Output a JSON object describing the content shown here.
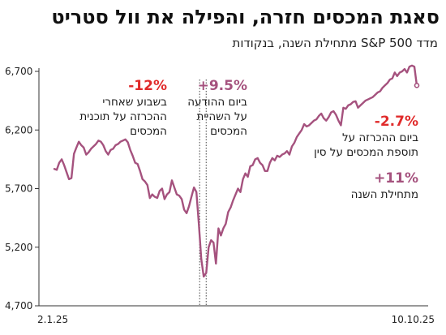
{
  "header": {
    "title": "סאגת המכסים חזרה, והפילה את וול סטריט",
    "subtitle": "מדד S&P 500 מתחילת השנה, בנקודות"
  },
  "colors": {
    "line": "#a5527e",
    "negative": "#e02b2b",
    "positive": "#a5527e",
    "axis": "#333333"
  },
  "annotations": [
    {
      "id": "week-after",
      "pct": "-12%",
      "tone": "negative",
      "lines": [
        "בשבוע שאחרי",
        "ההכרזה על תוכנית",
        "המכסים"
      ]
    },
    {
      "id": "pause-day",
      "pct": "+9.5%",
      "tone": "positive",
      "lines": [
        "ביום ההודעה",
        "על השהיית",
        "המכסים"
      ]
    },
    {
      "id": "china-day",
      "pct": "-2.7%",
      "tone": "negative",
      "lines": [
        "ביום ההכרזה על",
        "תוספת המכסים על סין"
      ]
    },
    {
      "id": "ytd",
      "pct": "+11%",
      "tone": "positive",
      "lines": [
        "מתחילת השנה"
      ]
    }
  ],
  "chart_data": {
    "type": "line",
    "title": "סאגת המכסים חזרה, והפילה את וול סטריט",
    "subtitle": "מדד S&P 500 מתחילת השנה, בנקודות",
    "x_tick_labels": [
      "2.1.25",
      "10.10.25"
    ],
    "y_ticks": [
      4700,
      5200,
      5700,
      6200,
      6700
    ],
    "y_tick_labels": [
      "4,700",
      "5,200",
      "5,700",
      "6,200",
      "6,700"
    ],
    "ylim": [
      4700,
      6700
    ],
    "grid": false,
    "legend": "none",
    "series": [
      {
        "values": [
          5868,
          5860,
          5920,
          5950,
          5900,
          5840,
          5780,
          5790,
          5996,
          6050,
          6100,
          6070,
          6050,
          5990,
          6010,
          6040,
          6060,
          6080,
          6110,
          6100,
          6070,
          6020,
          5990,
          6030,
          6040,
          6070,
          6080,
          6100,
          6110,
          6120,
          6095,
          6030,
          5980,
          5920,
          5910,
          5850,
          5780,
          5760,
          5730,
          5620,
          5650,
          5630,
          5620,
          5680,
          5700,
          5610,
          5650,
          5670,
          5770,
          5710,
          5650,
          5640,
          5610,
          5520,
          5490,
          5550,
          5630,
          5710,
          5670,
          5400,
          5100,
          4950,
          4980,
          5200,
          5260,
          5240,
          5060,
          5360,
          5300,
          5360,
          5400,
          5500,
          5540,
          5600,
          5650,
          5700,
          5670,
          5780,
          5830,
          5800,
          5890,
          5900,
          5950,
          5960,
          5920,
          5900,
          5850,
          5850,
          5920,
          5960,
          5940,
          5980,
          5970,
          5990,
          6000,
          6020,
          5990,
          6060,
          6090,
          6140,
          6170,
          6200,
          6250,
          6230,
          6240,
          6260,
          6280,
          6290,
          6320,
          6340,
          6300,
          6280,
          6310,
          6350,
          6360,
          6330,
          6280,
          6240,
          6390,
          6380,
          6410,
          6420,
          6440,
          6445,
          6390,
          6410,
          6430,
          6450,
          6460,
          6470,
          6480,
          6500,
          6520,
          6530,
          6560,
          6580,
          6600,
          6630,
          6640,
          6690,
          6660,
          6690,
          6700,
          6720,
          6690,
          6740,
          6750,
          6740,
          6580
        ]
      }
    ]
  }
}
